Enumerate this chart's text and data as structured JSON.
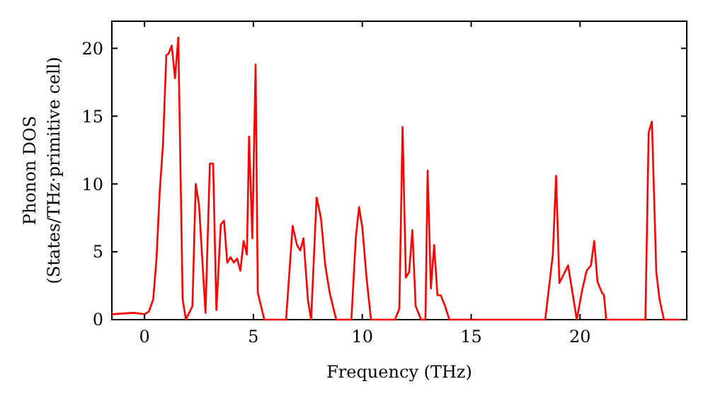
{
  "chart_data": {
    "type": "line",
    "xlabel": "Frequency (THz)",
    "ylabel": "Phonon DOS\n(States/THz·primitive cell)",
    "xlim": [
      -1.5,
      24.9
    ],
    "ylim": [
      0,
      22
    ],
    "xticks": [
      0,
      5,
      10,
      15,
      20
    ],
    "yticks": [
      0,
      5,
      10,
      15,
      20
    ],
    "grid": false,
    "marker": "none",
    "line_style": "solid",
    "series": [
      {
        "color": "#ff0000",
        "x": [
          -1.5,
          -0.5,
          0,
          0.2,
          0.4,
          0.55,
          0.7,
          0.85,
          1.0,
          1.1,
          1.25,
          1.4,
          1.55,
          1.75,
          1.9,
          2.2,
          2.35,
          2.5,
          2.8,
          3.0,
          3.15,
          3.3,
          3.5,
          3.65,
          3.8,
          3.95,
          4.1,
          4.25,
          4.4,
          4.55,
          4.7,
          4.8,
          4.95,
          5.1,
          5.2,
          5.5,
          6.5,
          6.8,
          7.0,
          7.15,
          7.3,
          7.5,
          7.65,
          7.9,
          8.1,
          8.3,
          8.5,
          8.8,
          9.5,
          9.7,
          9.85,
          10.0,
          10.2,
          10.4,
          11.5,
          11.7,
          11.85,
          12.0,
          12.15,
          12.3,
          12.45,
          12.7,
          12.9,
          13.0,
          13.15,
          13.3,
          13.45,
          13.6,
          13.8,
          14.0,
          18.4,
          18.75,
          18.9,
          19.05,
          19.3,
          19.45,
          19.6,
          19.85,
          20.1,
          20.3,
          20.5,
          20.65,
          20.8,
          21.0,
          21.1,
          21.2,
          23.0,
          23.15,
          23.3,
          23.5,
          23.65,
          23.85,
          24.6
        ],
        "values": [
          0.4,
          0.5,
          0.4,
          0.6,
          1.5,
          4.5,
          9.5,
          13,
          19.5,
          19.6,
          20.2,
          17.8,
          20.8,
          1.5,
          0,
          1.0,
          10.0,
          8.5,
          0.5,
          11.5,
          11.5,
          0.7,
          7.0,
          7.3,
          4.2,
          4.6,
          4.2,
          4.5,
          3.6,
          5.8,
          4.8,
          13.5,
          6.0,
          18.8,
          2.0,
          0,
          0,
          6.9,
          5.5,
          5.1,
          6.0,
          1.5,
          0,
          9.0,
          7.5,
          4.0,
          2.0,
          0,
          0,
          6.0,
          8.3,
          6.8,
          3.0,
          0,
          0,
          0.8,
          14.2,
          3.1,
          3.5,
          6.6,
          1.0,
          0,
          0,
          11.0,
          2.3,
          5.5,
          1.8,
          1.8,
          1.0,
          0,
          0,
          4.8,
          10.6,
          2.7,
          3.5,
          4.0,
          2.5,
          0,
          2.2,
          3.6,
          4.0,
          5.8,
          2.8,
          2.0,
          1.8,
          0,
          0,
          13.8,
          14.6,
          3.5,
          1.5,
          0,
          0
        ]
      }
    ]
  }
}
